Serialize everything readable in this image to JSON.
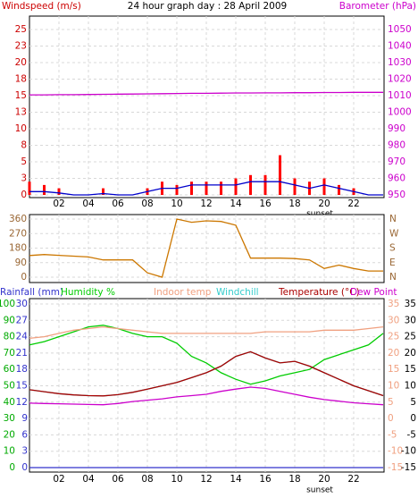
{
  "chart_data": [
    {
      "type": "bar",
      "title": "24 hour graph day : 28 April 2009",
      "ylabel": "Windspeed (m/s)",
      "y2label": "Barometer (hPa)",
      "ycolor": "#cc0000",
      "y2color": "#cc00cc",
      "x": [
        0,
        1,
        2,
        3,
        4,
        5,
        6,
        7,
        8,
        9,
        10,
        11,
        12,
        13,
        14,
        15,
        16,
        17,
        18,
        19,
        20,
        21,
        22,
        23,
        24
      ],
      "xlim": [
        0,
        24
      ],
      "xticks": [
        {
          "value": 2,
          "label": "02"
        },
        {
          "value": 4,
          "label": "04"
        },
        {
          "value": 6,
          "label": "06"
        },
        {
          "value": 8,
          "label": "08"
        },
        {
          "value": 10,
          "label": "10"
        },
        {
          "value": 12,
          "label": "12"
        },
        {
          "value": 14,
          "label": "14"
        },
        {
          "value": 16,
          "label": "16"
        },
        {
          "value": 18,
          "label": "18"
        },
        {
          "value": 20,
          "label": "20"
        },
        {
          "value": 22,
          "label": "22"
        }
      ],
      "ylim": [
        0,
        25
      ],
      "yticks": [
        0,
        {
          "value": 2.5,
          "label": "3"
        },
        5,
        {
          "value": 7.5,
          "label": "8"
        },
        10,
        {
          "value": 12.5,
          "label": "13"
        },
        15,
        {
          "value": 17.5,
          "label": "18"
        },
        20,
        {
          "value": 22.5,
          "label": "23"
        },
        25
      ],
      "y2lim": [
        950,
        1050
      ],
      "y2ticks": [
        950,
        960,
        970,
        980,
        990,
        1000,
        1010,
        1020,
        1030,
        1040,
        1050
      ],
      "grid": true,
      "annotations": [
        {
          "text": "sunset",
          "x": 19.7
        }
      ],
      "series": [
        {
          "color": "#ff0000",
          "values": [
            2,
            1.5,
            1,
            0,
            0,
            1,
            0,
            0,
            1,
            2,
            1.5,
            2,
            2,
            2,
            2.5,
            3,
            3,
            6,
            2.5,
            2,
            2.5,
            1.5,
            1,
            0,
            0
          ]
        },
        {
          "type": "line",
          "color": "#0000cc",
          "values": [
            0.5,
            0.5,
            0.3,
            0,
            0,
            0.2,
            0,
            0,
            0.5,
            1,
            1,
            1.5,
            1.5,
            1.5,
            1.5,
            2,
            2,
            2,
            1.5,
            1,
            1.5,
            1,
            0.5,
            0,
            0
          ]
        },
        {
          "type": "line",
          "axis": "y2",
          "color": "#cc00cc",
          "values": [
            1010.5,
            1010.5,
            1010.6,
            1010.6,
            1010.7,
            1010.8,
            1010.9,
            1011,
            1011.1,
            1011.2,
            1011.3,
            1011.4,
            1011.4,
            1011.5,
            1011.6,
            1011.6,
            1011.7,
            1011.7,
            1011.8,
            1011.8,
            1011.9,
            1011.9,
            1012,
            1012,
            1012
          ]
        }
      ]
    },
    {
      "type": "line",
      "ycolor": "#996633",
      "y2color": "#996633",
      "x": [
        0,
        1,
        2,
        3,
        4,
        5,
        6,
        7,
        8,
        9,
        10,
        11,
        12,
        13,
        14,
        15,
        16,
        17,
        18,
        19,
        20,
        21,
        22,
        23,
        24
      ],
      "xlim": [
        0,
        24
      ],
      "xticks": [
        {
          "value": 2,
          "label": "02"
        },
        {
          "value": 4,
          "label": "04"
        },
        {
          "value": 6,
          "label": "06"
        },
        {
          "value": 8,
          "label": "08"
        },
        {
          "value": 10,
          "label": "10"
        },
        {
          "value": 12,
          "label": "12"
        },
        {
          "value": 14,
          "label": "14"
        },
        {
          "value": 16,
          "label": "16"
        },
        {
          "value": 18,
          "label": "18"
        },
        {
          "value": 20,
          "label": "20"
        },
        {
          "value": 22,
          "label": "22"
        }
      ],
      "ylim": [
        0,
        360
      ],
      "yticks": [
        0,
        90,
        180,
        270,
        360
      ],
      "y2lim": [
        0,
        360
      ],
      "y2ticks": [
        {
          "value": 0,
          "label": "N"
        },
        {
          "value": 90,
          "label": "E"
        },
        {
          "value": 180,
          "label": "S"
        },
        {
          "value": 270,
          "label": "W"
        },
        {
          "value": 360,
          "label": "N"
        }
      ],
      "grid": true,
      "series": [
        {
          "color": "#cc7700",
          "values": [
            134,
            140,
            135,
            130,
            125,
            107,
            107,
            107,
            27,
            0,
            360,
            340,
            349,
            345,
            322,
            118,
            118,
            118,
            115,
            107,
            54,
            75,
            54,
            38,
            38
          ]
        }
      ]
    },
    {
      "type": "line",
      "ycolor": "#00aa00",
      "raincolor": "#3333cc",
      "y2color": "#f0a080",
      "x": [
        0,
        1,
        2,
        3,
        4,
        5,
        6,
        7,
        8,
        9,
        10,
        11,
        12,
        13,
        14,
        15,
        16,
        17,
        18,
        19,
        20,
        21,
        22,
        23,
        24
      ],
      "xlim": [
        0,
        24
      ],
      "xticks": [
        {
          "value": 2,
          "label": "02"
        },
        {
          "value": 4,
          "label": "04"
        },
        {
          "value": 6,
          "label": "06"
        },
        {
          "value": 8,
          "label": "08"
        },
        {
          "value": 10,
          "label": "10"
        },
        {
          "value": 12,
          "label": "12"
        },
        {
          "value": 14,
          "label": "14"
        },
        {
          "value": 16,
          "label": "16"
        },
        {
          "value": 18,
          "label": "18"
        },
        {
          "value": 20,
          "label": "20"
        },
        {
          "value": 22,
          "label": "22"
        }
      ],
      "ylim": [
        0,
        100
      ],
      "yticks": [
        0,
        10,
        20,
        30,
        40,
        50,
        60,
        70,
        80,
        90,
        100
      ],
      "rainlim": [
        0,
        30
      ],
      "rainticks": [
        0,
        3,
        6,
        9,
        12,
        15,
        18,
        21,
        24,
        27,
        30
      ],
      "y2lim": [
        -15,
        35
      ],
      "y2ticks": [
        -15,
        -10,
        -5,
        0,
        5,
        10,
        15,
        20,
        25,
        30,
        35
      ],
      "grid": true,
      "annotations": [
        {
          "text": "sunset",
          "x": 19.7
        }
      ],
      "series": [
        {
          "name": "Rainfall (mm)",
          "axis": "rain",
          "color": "#3333cc",
          "values": [
            0,
            0,
            0,
            0,
            0,
            0,
            0,
            0,
            0,
            0,
            0,
            0,
            0,
            0,
            0,
            0,
            0,
            0,
            0,
            0,
            0,
            0,
            0,
            0,
            0
          ]
        },
        {
          "name": "Humidity %",
          "color": "#00cc00",
          "values": [
            75,
            77,
            80,
            83,
            86,
            87,
            85,
            82,
            80,
            80,
            76,
            68,
            64,
            58,
            54,
            51,
            53,
            56,
            58,
            60,
            66,
            69,
            72,
            75,
            82
          ]
        },
        {
          "name": "Indoor temp",
          "axis": "y2",
          "color": "#f0a080",
          "values": [
            24.5,
            25,
            26,
            27,
            27.5,
            28,
            27.5,
            27,
            26.5,
            26,
            26,
            26,
            26,
            26,
            26,
            26,
            26.5,
            26.5,
            26.5,
            26.5,
            27,
            27,
            27,
            27.5,
            28
          ]
        },
        {
          "name": "Windchill",
          "axis": "y2",
          "color": "#33cccc",
          "values": [
            8.8,
            8.2,
            7.6,
            7.2,
            7,
            6.9,
            7.3,
            8,
            9,
            10,
            11,
            12.5,
            14,
            16,
            19,
            20.4,
            18.5,
            17,
            17.5,
            16,
            14,
            12,
            10,
            8.5,
            7
          ]
        },
        {
          "name": "Temperature (°C)",
          "axis": "y2",
          "color": "#aa0000",
          "values": [
            8.8,
            8.2,
            7.6,
            7.2,
            7,
            6.9,
            7.3,
            8,
            9,
            10,
            11,
            12.5,
            14,
            16,
            19,
            20.4,
            18.5,
            17,
            17.5,
            16,
            14,
            12,
            10,
            8.5,
            7
          ]
        },
        {
          "name": "Dew Point",
          "axis": "y2",
          "color": "#cc00cc",
          "values": [
            4.7,
            4.6,
            4.5,
            4.4,
            4.3,
            4.2,
            4.6,
            5.2,
            5.6,
            6,
            6.6,
            7,
            7.4,
            8.3,
            9,
            9.6,
            9.2,
            8.3,
            7.4,
            6.5,
            5.8,
            5.3,
            4.8,
            4.5,
            4.2
          ]
        }
      ]
    }
  ]
}
